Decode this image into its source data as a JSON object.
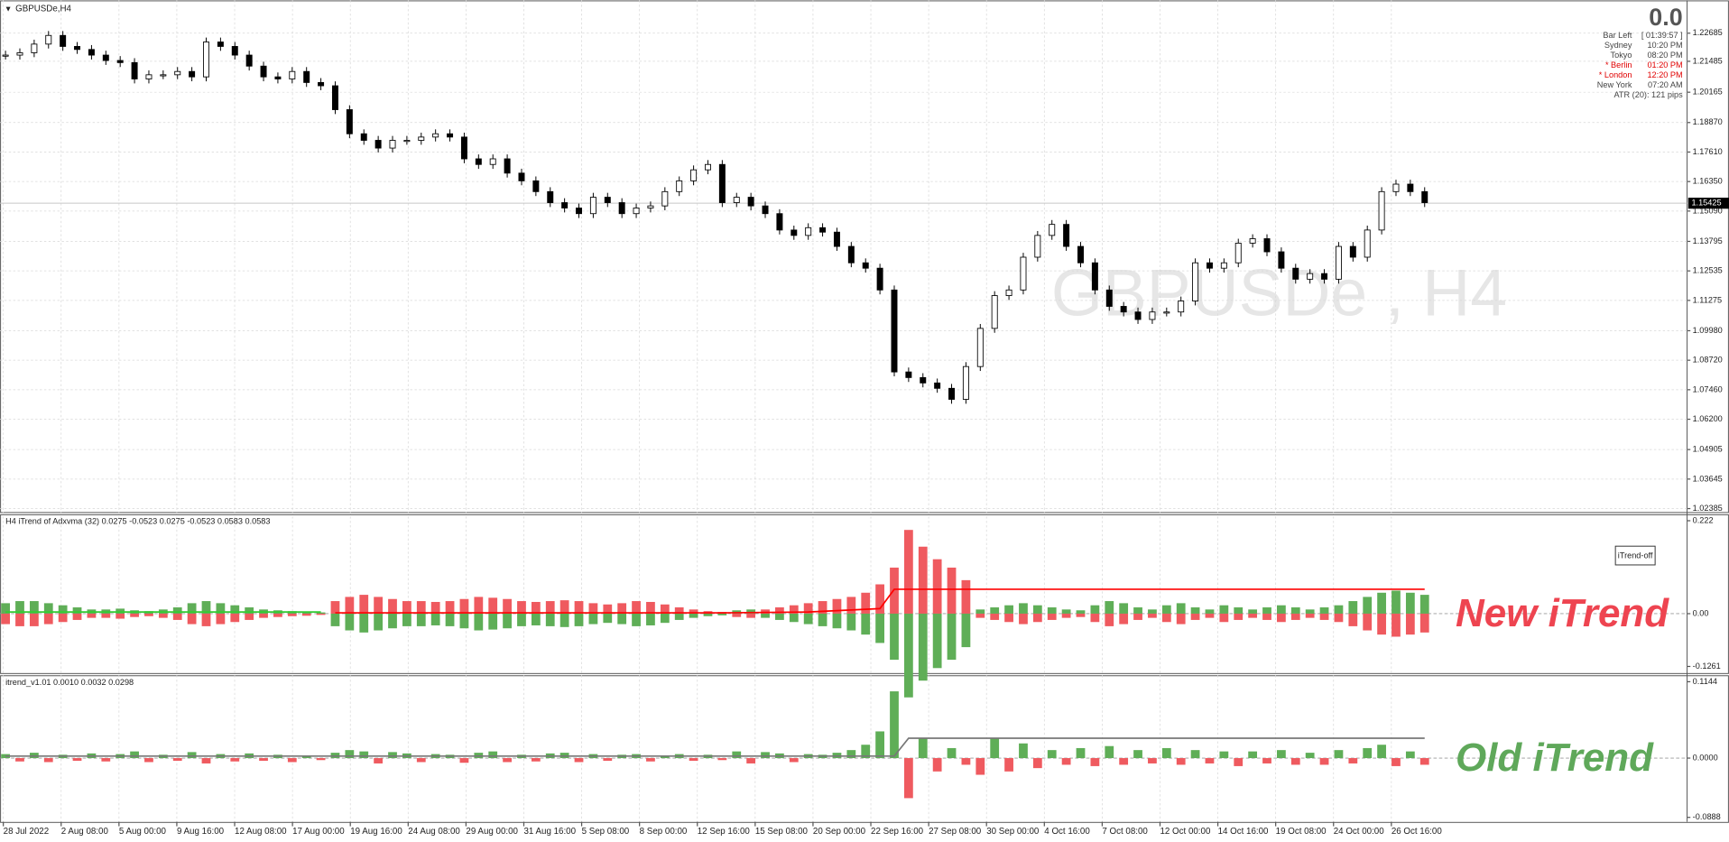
{
  "window_title": "GBPUSDe,H4",
  "watermark": "GBPUSDe , H4",
  "info": {
    "big": "0.0",
    "rows": [
      {
        "label": "Bar Left",
        "value": "[ 01:39:57 ]",
        "color": "#444"
      },
      {
        "label": "Sydney",
        "value": "10:20 PM",
        "color": "#444"
      },
      {
        "label": "Tokyo",
        "value": "08:20 PM",
        "color": "#444"
      },
      {
        "label": "* Berlin",
        "value": "01:20 PM",
        "color": "#e00000"
      },
      {
        "label": "* London",
        "value": "12:20 PM",
        "color": "#e00000"
      },
      {
        "label": "New York",
        "value": "07:20 AM",
        "color": "#444"
      }
    ],
    "atr": "ATR (20): 121 pips"
  },
  "chart_data": [
    {
      "type": "candlestick",
      "x_labels": [
        "28 Jul 2022",
        "2 Aug 08:00",
        "5 Aug 00:00",
        "9 Aug 16:00",
        "12 Aug 08:00",
        "17 Aug 00:00",
        "19 Aug 16:00",
        "24 Aug 08:00",
        "29 Aug 00:00",
        "31 Aug 16:00",
        "5 Sep 08:00",
        "8 Sep 00:00",
        "12 Sep 16:00",
        "15 Sep 08:00",
        "20 Sep 00:00",
        "22 Sep 16:00",
        "27 Sep 08:00",
        "30 Sep 00:00",
        "4 Oct 16:00",
        "7 Oct 08:00",
        "12 Oct 00:00",
        "14 Oct 16:00",
        "19 Oct 08:00",
        "24 Oct 00:00",
        "26 Oct 16:00"
      ],
      "values": [
        1.2175,
        1.2185,
        1.2222,
        1.2259,
        1.2212,
        1.2199,
        1.2175,
        1.2152,
        1.2143,
        1.2073,
        1.2091,
        1.2091,
        1.2105,
        1.2082,
        1.2231,
        1.2212,
        1.2175,
        1.2128,
        1.2082,
        1.2073,
        1.2105,
        1.2058,
        1.2044,
        1.1942,
        1.1839,
        1.1811,
        1.1778,
        1.1811,
        1.1811,
        1.1825,
        1.1839,
        1.1825,
        1.1732,
        1.1708,
        1.1732,
        1.1671,
        1.1638,
        1.1592,
        1.1545,
        1.1522,
        1.1498,
        1.1568,
        1.1545,
        1.1498,
        1.1522,
        1.1531,
        1.1592,
        1.1638,
        1.1685,
        1.1708,
        1.1545,
        1.1568,
        1.1531,
        1.1498,
        1.1428,
        1.1405,
        1.1438,
        1.1419,
        1.1358,
        1.1288,
        1.1265,
        1.1172,
        1.0822,
        1.0798,
        1.0775,
        1.0752,
        1.0705,
        1.0845,
        1.1008,
        1.1148,
        1.1172,
        1.1312,
        1.1405,
        1.1452,
        1.1358,
        1.1288,
        1.1172,
        1.1102,
        1.1078,
        1.1046,
        1.1078,
        1.1078,
        1.1125,
        1.1288,
        1.1265,
        1.1288,
        1.1372,
        1.1391,
        1.1335,
        1.1265,
        1.1218,
        1.1242,
        1.1218,
        1.1358,
        1.1312,
        1.1428,
        1.1592,
        1.1624,
        1.1592,
        1.1545
      ],
      "ylim": [
        1.0224,
        1.2409
      ],
      "yticks": [
        1.22685,
        1.21485,
        1.20165,
        {
          "value": 1.1887,
          "label": "1.18870"
        },
        {
          "value": 1.1761,
          "label": "1.17610"
        },
        {
          "value": 1.1635,
          "label": "1.16350"
        },
        {
          "value": 1.1509,
          "label": "1.15090"
        },
        1.13795,
        1.12535,
        1.11275,
        {
          "value": 1.0998,
          "label": "1.09980"
        },
        {
          "value": 1.0872,
          "label": "1.08720"
        },
        {
          "value": 1.0746,
          "label": "1.07460"
        },
        {
          "value": 1.062,
          "label": "1.06200"
        },
        1.04905,
        1.03645,
        1.02385
      ],
      "current_price": 1.15425,
      "grid": true
    },
    {
      "type": "histogram",
      "title": "H4 iTrend of Adxvma (32) 0.0275 -0.0523 0.0275 -0.0523 0.0583 0.0583",
      "values": [
        -0.025,
        -0.03,
        -0.03,
        -0.025,
        -0.02,
        -0.015,
        -0.01,
        -0.01,
        -0.012,
        -0.008,
        -0.006,
        -0.01,
        -0.015,
        -0.025,
        -0.03,
        -0.025,
        -0.02,
        -0.015,
        -0.01,
        -0.008,
        -0.006,
        -0.005,
        -0.003,
        0.03,
        0.04,
        0.045,
        0.04,
        0.035,
        0.03,
        0.03,
        0.028,
        0.03,
        0.035,
        0.04,
        0.038,
        0.035,
        0.03,
        0.028,
        0.03,
        0.032,
        0.03,
        0.025,
        0.022,
        0.025,
        0.03,
        0.028,
        0.022,
        0.015,
        0.01,
        0.006,
        0.004,
        -0.008,
        -0.01,
        0.01,
        0.015,
        0.02,
        0.025,
        0.03,
        0.035,
        0.04,
        0.05,
        0.07,
        0.11,
        0.2,
        0.16,
        0.13,
        0.11,
        0.08,
        -0.01,
        -0.015,
        -0.02,
        -0.025,
        -0.02,
        -0.015,
        -0.01,
        -0.008,
        -0.02,
        -0.03,
        -0.025,
        -0.015,
        -0.01,
        -0.02,
        -0.025,
        -0.015,
        -0.01,
        -0.02,
        -0.015,
        -0.01,
        -0.015,
        -0.02,
        -0.015,
        -0.01,
        -0.015,
        -0.02,
        -0.03,
        -0.04,
        -0.05,
        -0.055,
        -0.05,
        -0.045
      ],
      "mirror": true,
      "colors": {
        "up": "#ef5a5f",
        "down": "#5fae57"
      },
      "ylim": [
        -0.1417,
        0.2376
      ],
      "yticks": [
        0.222,
        {
          "value": 0,
          "label": "0.00"
        },
        -0.1261
      ],
      "lines": [
        {
          "color": "#33cc33",
          "x": [
            0,
            22
          ],
          "values": [
            0.004,
            0.004
          ]
        },
        {
          "color": "#ff0000",
          "x": [
            23,
            50,
            56,
            61,
            62,
            99
          ],
          "values": [
            0.002,
            0.002,
            0.004,
            0.012,
            0.0583,
            0.0583
          ]
        }
      ],
      "button": "iTrend-off",
      "annotation": "New iTrend",
      "annotation_color": "#ee4450"
    },
    {
      "type": "histogram",
      "title": "itrend_v1.01 0.0010 0.0032 0.0298",
      "values": [
        0.006,
        -0.005,
        0.008,
        -0.006,
        0.005,
        -0.004,
        0.007,
        -0.005,
        0.006,
        0.01,
        -0.006,
        0.005,
        -0.004,
        0.009,
        -0.008,
        0.006,
        -0.005,
        0.007,
        -0.004,
        0.005,
        -0.006,
        0.004,
        -0.003,
        0.008,
        0.012,
        0.01,
        -0.008,
        0.009,
        0.007,
        -0.006,
        0.006,
        0.005,
        -0.007,
        0.008,
        0.01,
        -0.006,
        0.005,
        -0.005,
        0.007,
        0.008,
        -0.006,
        0.006,
        -0.004,
        0.005,
        0.006,
        -0.005,
        0.004,
        0.006,
        -0.004,
        0.005,
        -0.003,
        0.01,
        -0.008,
        0.009,
        0.007,
        -0.006,
        0.006,
        0.005,
        0.008,
        0.012,
        0.02,
        0.04,
        0.1,
        -0.06,
        0.03,
        -0.02,
        0.015,
        -0.01,
        -0.025,
        0.03,
        -0.02,
        0.022,
        -0.015,
        0.012,
        -0.01,
        0.015,
        -0.012,
        0.018,
        -0.01,
        0.012,
        -0.008,
        0.015,
        -0.01,
        0.012,
        -0.008,
        0.01,
        -0.012,
        0.01,
        -0.008,
        0.012,
        -0.01,
        0.008,
        -0.01,
        0.012,
        -0.008,
        0.015,
        0.02,
        -0.012,
        0.01,
        -0.01
      ],
      "mirror": false,
      "colors": {
        "up": "#ef5a5f",
        "down": "#5fae57"
      },
      "ylim": [
        -0.0955,
        0.1242
      ],
      "yticks": [
        0.1144,
        {
          "value": 0,
          "label": "0.0000"
        },
        -0.0888
      ],
      "lines": [
        {
          "color": "#777777",
          "x": [
            0,
            62,
            63,
            99
          ],
          "values": [
            0.003,
            0.003,
            0.0298,
            0.0298
          ]
        }
      ],
      "annotation": "Old iTrend",
      "annotation_color": "#5fa85a"
    }
  ]
}
